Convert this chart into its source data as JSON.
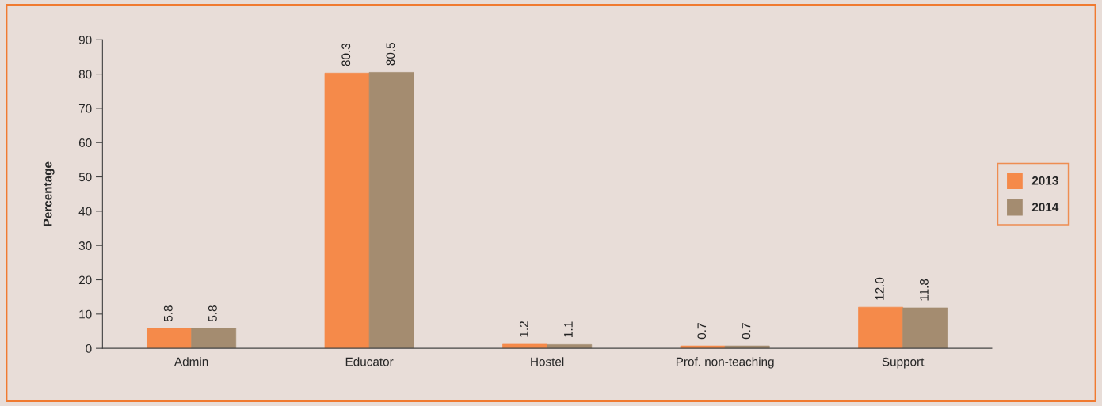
{
  "chart_data": {
    "type": "bar",
    "ylabel": "Percentage",
    "categories": [
      "Admin",
      "Educator",
      "Hostel",
      "Prof. non-teaching",
      "Support"
    ],
    "series": [
      {
        "name": "2013",
        "color": "#f58a4a",
        "values": [
          5.8,
          80.3,
          1.2,
          0.7,
          12.0
        ],
        "value_labels": [
          "5.8",
          "80.3",
          "1.2",
          "0.7",
          "12.0"
        ]
      },
      {
        "name": "2014",
        "color": "#a48c70",
        "values": [
          5.8,
          80.5,
          1.1,
          0.7,
          11.8
        ],
        "value_labels": [
          "5.8",
          "80.5",
          "1.1",
          "0.7",
          "11.8"
        ]
      }
    ],
    "ylim": [
      0,
      90
    ],
    "yticks": [
      0,
      10,
      20,
      30,
      40,
      50,
      60,
      70,
      80,
      90
    ],
    "grid": false,
    "legend": "right"
  }
}
